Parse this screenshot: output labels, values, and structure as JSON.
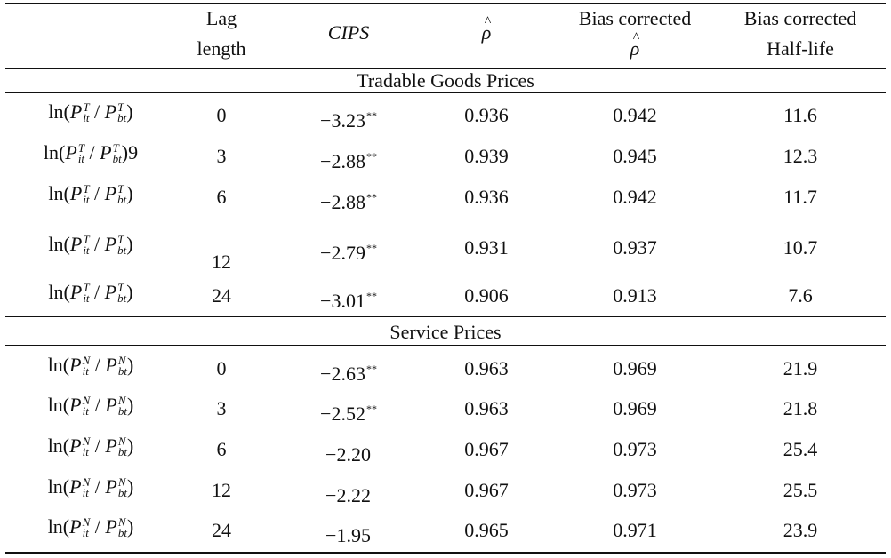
{
  "header": {
    "col1": "",
    "col2_line1": "Lag",
    "col2_line2": "length",
    "col3": "CIPS",
    "col4_symbol": "ρ",
    "col4_hat": "^",
    "col5_line1": "Bias corrected",
    "col5_symbol": "ρ",
    "col5_hat": "^",
    "col6_line1": "Bias corrected",
    "col6_line2": "Half-life"
  },
  "sections": [
    {
      "title": "Tradable Goods Prices",
      "rows": [
        {
          "ln": "ln(",
          "P1": "P",
          "sup1": "T",
          "sub1": "it",
          "slash": " / ",
          "P2": "P",
          "sup2": "T",
          "sub2": "bt",
          "close": ")",
          "lag": "0",
          "cips": "−3.23",
          "stars": "**",
          "rho": "0.936",
          "bias_rho": "0.942",
          "half_life": "11.6"
        },
        {
          "ln": "ln(",
          "P1": "P",
          "sup1": "T",
          "sub1": "it",
          "slash": " / ",
          "P2": "P",
          "sup2": "T",
          "sub2": "bt",
          "close": ")9",
          "lag": "3",
          "cips": "−2.88",
          "stars": "**",
          "rho": "0.939",
          "bias_rho": "0.945",
          "half_life": "12.3"
        },
        {
          "ln": "ln(",
          "P1": "P",
          "sup1": "T",
          "sub1": "it",
          "slash": " / ",
          "P2": "P",
          "sup2": "T",
          "sub2": "bt",
          "close": ")",
          "lag": "6",
          "cips": "−2.88",
          "stars": "**",
          "rho": "0.936",
          "bias_rho": "0.942",
          "half_life": "11.7"
        },
        {
          "ln": "ln(",
          "P1": "P",
          "sup1": "T",
          "sub1": "it",
          "slash": " / ",
          "P2": "P",
          "sup2": "T",
          "sub2": "bt",
          "close": ")",
          "lag": "12",
          "cips": "−2.79",
          "stars": "**",
          "rho": "0.931",
          "bias_rho": "0.937",
          "half_life": "10.7"
        },
        {
          "ln": "ln(",
          "P1": "P",
          "sup1": "T",
          "sub1": "it",
          "slash": " / ",
          "P2": "P",
          "sup2": "T",
          "sub2": "bt",
          "close": ")",
          "lag": "24",
          "cips": "−3.01",
          "stars": "**",
          "rho": "0.906",
          "bias_rho": "0.913",
          "half_life": "7.6"
        }
      ]
    },
    {
      "title": "Service Prices",
      "rows": [
        {
          "ln": "ln(",
          "P1": "P",
          "sup1": "N",
          "sub1": "it",
          "slash": " / ",
          "P2": "P",
          "sup2": "N",
          "sub2": "bt",
          "close": ")",
          "lag": "0",
          "cips": "−2.63",
          "stars": "**",
          "rho": "0.963",
          "bias_rho": "0.969",
          "half_life": "21.9"
        },
        {
          "ln": "ln(",
          "P1": "P",
          "sup1": "N",
          "sub1": "it",
          "slash": " / ",
          "P2": "P",
          "sup2": "N",
          "sub2": "bt",
          "close": ")",
          "lag": "3",
          "cips": "−2.52",
          "stars": "**",
          "rho": "0.963",
          "bias_rho": "0.969",
          "half_life": "21.8"
        },
        {
          "ln": "ln(",
          "P1": "P",
          "sup1": "N",
          "sub1": "it",
          "slash": " / ",
          "P2": "P",
          "sup2": "N",
          "sub2": "bt",
          "close": ")",
          "lag": "6",
          "cips": "−2.20",
          "stars": "",
          "rho": "0.967",
          "bias_rho": "0.973",
          "half_life": "25.4"
        },
        {
          "ln": "ln(",
          "P1": "P",
          "sup1": "N",
          "sub1": "it",
          "slash": " / ",
          "P2": "P",
          "sup2": "N",
          "sub2": "bt",
          "close": ")",
          "lag": "12",
          "cips": "−2.22",
          "stars": "",
          "rho": "0.967",
          "bias_rho": "0.973",
          "half_life": "25.5"
        },
        {
          "ln": "ln(",
          "P1": "P",
          "sup1": "N",
          "sub1": "it",
          "slash": " / ",
          "P2": "P",
          "sup2": "N",
          "sub2": "bt",
          "close": ")",
          "lag": "24",
          "cips": "−1.95",
          "stars": "",
          "rho": "0.965",
          "bias_rho": "0.971",
          "half_life": "23.9"
        }
      ]
    }
  ]
}
